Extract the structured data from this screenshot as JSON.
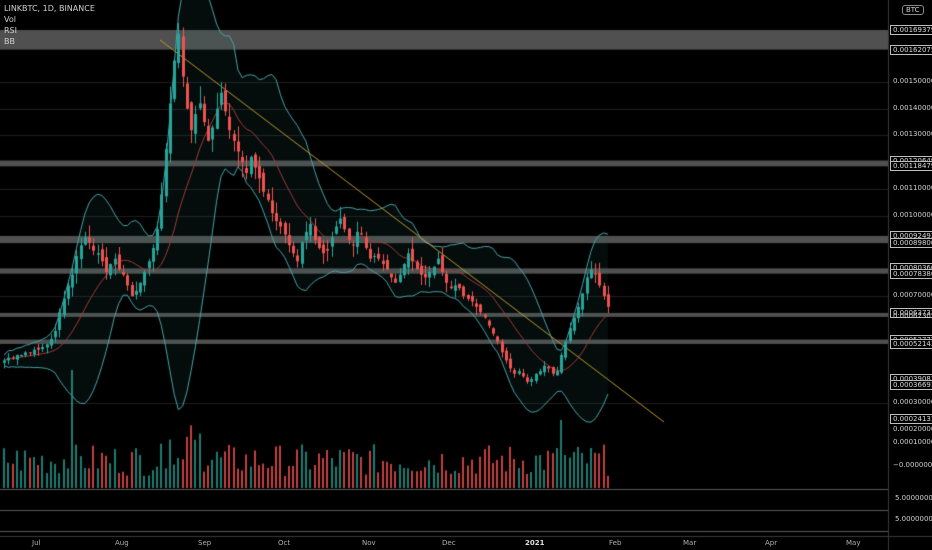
{
  "legend": {
    "symbol": "LINKBTC, 1D, BINANCE",
    "vol": "Vol",
    "rsi": "RSI",
    "bb": "BB"
  },
  "currency_badge": "BTC",
  "time_axis": [
    "Jul",
    "Aug",
    "Sep",
    "Oct",
    "Nov",
    "Dec",
    "2021",
    "Feb",
    "Mar",
    "Apr",
    "May"
  ],
  "price_labels": [
    {
      "text": "0.00169379",
      "style": "box"
    },
    {
      "text": "0.00162075",
      "style": "box"
    },
    {
      "text": "0.00150000",
      "style": "plain"
    },
    {
      "text": "0.00140000",
      "style": "plain"
    },
    {
      "text": "0.00130000",
      "style": "plain"
    },
    {
      "text": "0.00120649",
      "style": "box"
    },
    {
      "text": "0.00118479",
      "style": "box"
    },
    {
      "text": "0.00110000",
      "style": "plain"
    },
    {
      "text": "0.00100000",
      "style": "plain"
    },
    {
      "text": "0.00092493",
      "style": "box"
    },
    {
      "text": "0.00089800",
      "style": "box"
    },
    {
      "text": "0.00080360",
      "style": "box"
    },
    {
      "text": "0.00078386",
      "style": "box"
    },
    {
      "text": "0.00070000",
      "style": "plain"
    },
    {
      "text": "0.00063732",
      "style": "box"
    },
    {
      "text": "0.00062307",
      "style": "plain"
    },
    {
      "text": "0.00053772",
      "style": "box"
    },
    {
      "text": "0.00052143",
      "style": "box"
    },
    {
      "text": "0.00039083",
      "style": "box"
    },
    {
      "text": "0.00036691",
      "style": "box"
    },
    {
      "text": "0.00030000",
      "style": "plain"
    },
    {
      "text": "0.00024131",
      "style": "box"
    },
    {
      "text": "0.00020000",
      "style": "plain"
    },
    {
      "text": "0.00010000",
      "style": "plain"
    },
    {
      "text": "−0.00000000",
      "style": "plain"
    }
  ],
  "indicator_labels": [
    "5.00000000",
    "5.00000000"
  ],
  "colors": {
    "up": "#26a69a",
    "down": "#ef5350",
    "band": "#4aa3a8",
    "basis": "#a33a3a",
    "trend": "#b89a2e",
    "zone": "#505050"
  },
  "chart_data": {
    "type": "candlestick",
    "ylim": [
      0.0002,
      0.00175
    ],
    "horizontal_zones": [
      [
        0.00162075,
        0.00169379
      ],
      [
        0.00118479,
        0.00120649
      ],
      [
        0.000898,
        0.00092493
      ],
      [
        0.00078386,
        0.0008036
      ],
      [
        0.00062307,
        0.00063732
      ],
      [
        0.00052143,
        0.00053772
      ]
    ],
    "closes": [
      0.00046,
      0.00047,
      0.00047,
      0.00048,
      0.00048,
      0.00049,
      0.00049,
      0.0005,
      0.0005,
      0.00051,
      0.00052,
      0.00054,
      0.00057,
      0.00064,
      0.00069,
      0.00074,
      0.00078,
      0.00085,
      0.00089,
      0.00092,
      0.0009,
      0.00087,
      0.00086,
      0.00083,
      0.00079,
      0.00082,
      0.00084,
      0.0008,
      0.00078,
      0.00074,
      0.0007,
      0.00072,
      0.00075,
      0.00079,
      0.00083,
      0.00088,
      0.00095,
      0.00108,
      0.00125,
      0.00142,
      0.00158,
      0.00168,
      0.00152,
      0.0014,
      0.00132,
      0.00138,
      0.00142,
      0.00135,
      0.00128,
      0.00133,
      0.0014,
      0.00146,
      0.00139,
      0.00132,
      0.00128,
      0.00124,
      0.0012,
      0.00116,
      0.00122,
      0.00118,
      0.00114,
      0.00109,
      0.00106,
      0.00101,
      0.00098,
      0.00096,
      0.00093,
      0.00089,
      0.00086,
      0.00083,
      0.0009,
      0.00094,
      0.00097,
      0.00091,
      0.00088,
      0.00086,
      0.00087,
      0.00092,
      0.00096,
      0.00099,
      0.00095,
      0.00091,
      0.00089,
      0.00094,
      0.00093,
      0.00088,
      0.00084,
      0.00085,
      0.00084,
      0.00082,
      0.0008,
      0.00077,
      0.00075,
      0.00078,
      0.00082,
      0.00086,
      0.00083,
      0.0008,
      0.00078,
      0.00077,
      0.00079,
      0.00081,
      0.00084,
      0.00079,
      0.00075,
      0.00073,
      0.00074,
      0.00073,
      0.0007,
      0.00069,
      0.00068,
      0.00066,
      0.00064,
      0.00062,
      0.00059,
      0.00056,
      0.00053,
      0.00049,
      0.00046,
      0.00043,
      0.00041,
      0.00042,
      0.0004,
      0.00038,
      0.00039,
      0.00041,
      0.00042,
      0.00044,
      0.00043,
      0.00041,
      0.00042,
      0.00048,
      0.00053,
      0.00058,
      0.00062,
      0.00066,
      0.00071,
      0.00077,
      0.0008,
      0.00078,
      0.00074,
      0.0007,
      0.00066
    ]
  }
}
